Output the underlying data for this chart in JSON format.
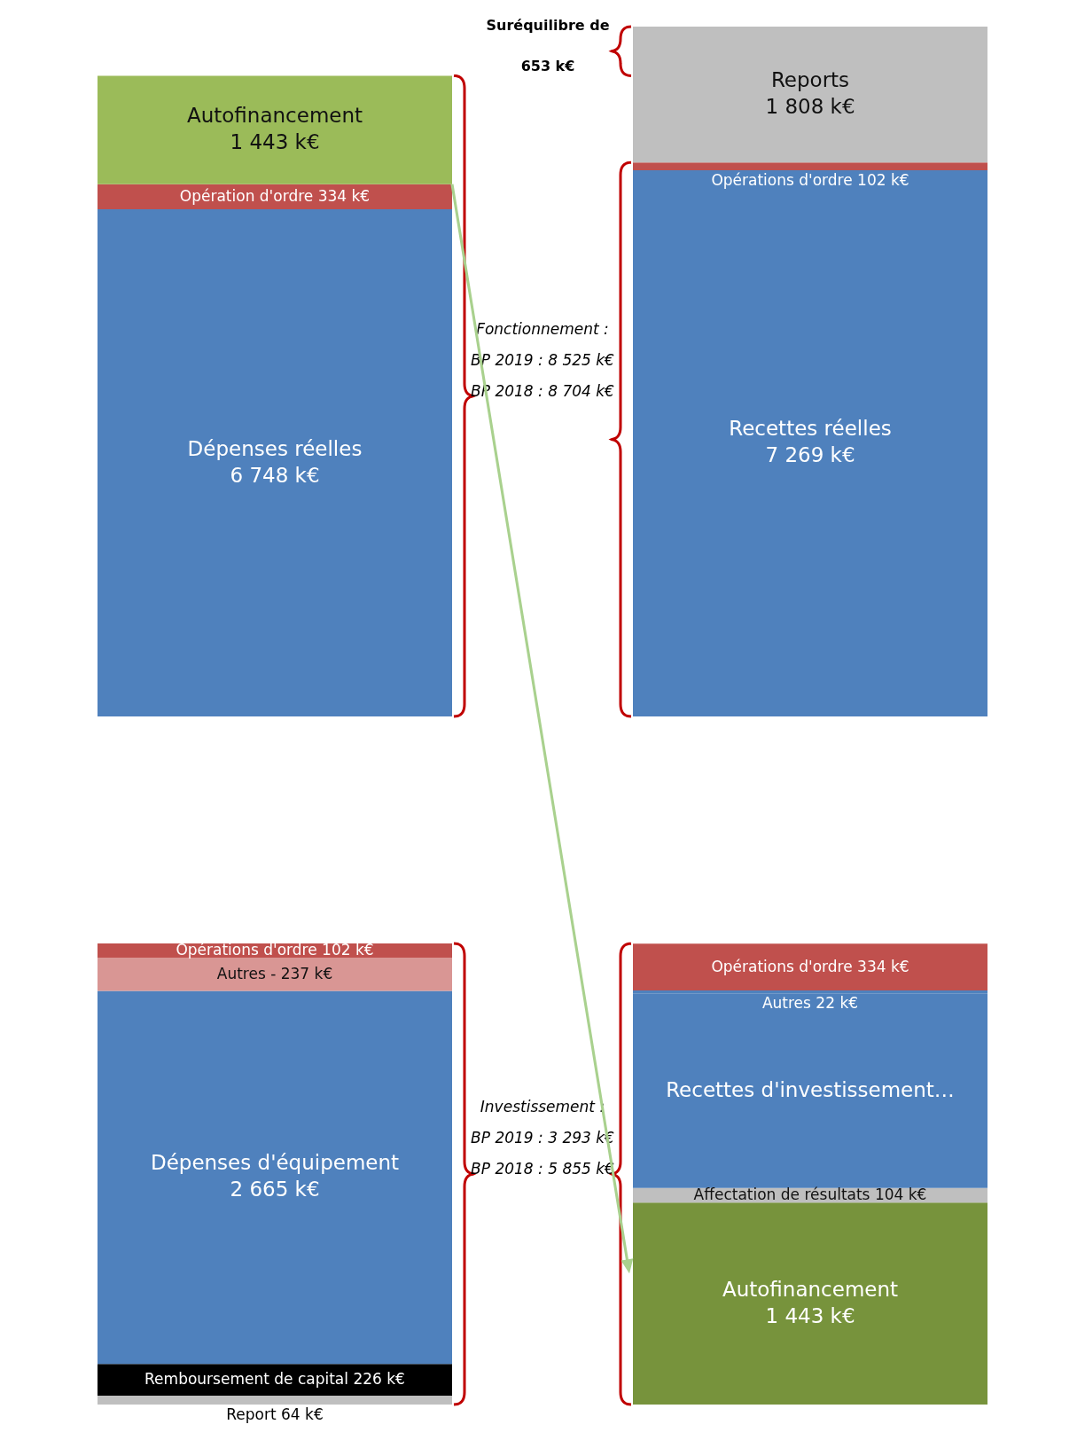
{
  "chart_data": [
    {
      "type": "bar",
      "stacked": true,
      "categories": [
        null,
        null
      ],
      "tick_labels": false,
      "annotations": [
        "Fonctionnement :\nBP 2019 : 8 525 k€\nBP 2018 : 8 704 k€",
        "Suréquilibre de\n653 k€"
      ],
      "series": [
        {
          "name": "Dépenses réelles",
          "color": "#4f81bd",
          "values": [
            6748,
            null
          ],
          "value_labels": [
            "6 748 k€",
            null
          ]
        },
        {
          "name": "Opération d'ordre",
          "color": "#c0504d",
          "values": [
            334,
            null
          ],
          "value_labels": [
            "334 k€",
            null
          ]
        },
        {
          "name": "Autofinancement",
          "color": "#9bbb59",
          "values": [
            1443,
            null
          ],
          "value_labels": [
            "1 443 k€",
            null
          ]
        },
        {
          "name": "Recettes réelles",
          "color": "#4f81bd",
          "values": [
            null,
            7269
          ],
          "value_labels": [
            null,
            "7 269 k€"
          ]
        },
        {
          "name": "Opérations d'ordre",
          "color": "#c0504d",
          "values": [
            null,
            102
          ],
          "value_labels": [
            null,
            "102 k€"
          ]
        },
        {
          "name": "Reports",
          "color": "#bfbfbf",
          "values": [
            null,
            1808
          ],
          "value_labels": [
            null,
            "1 808 k€"
          ]
        }
      ]
    },
    {
      "type": "bar",
      "stacked": true,
      "categories": [
        null,
        null
      ],
      "tick_labels": false,
      "annotations": [
        "Investissement :\nBP 2019 : 3 293 k€\nBP 2018 : 5 855 k€"
      ],
      "series": [
        {
          "name": "Report",
          "color": "#bfbfbf",
          "values": [
            64,
            null
          ],
          "value_labels": [
            "64 k€",
            null
          ]
        },
        {
          "name": "Remboursement de capital",
          "color": "#000000",
          "values": [
            226,
            null
          ],
          "value_labels": [
            "226 k€",
            null
          ]
        },
        {
          "name": "Dépenses d'équipement",
          "color": "#4f81bd",
          "values": [
            2665,
            null
          ],
          "value_labels": [
            "2 665 k€",
            null
          ]
        },
        {
          "name": "Autres -",
          "color": "#d99694",
          "values": [
            237,
            null
          ],
          "value_labels": [
            "237 k€",
            null
          ]
        },
        {
          "name": "Opérations d'ordre",
          "color": "#c0504d",
          "values": [
            102,
            null
          ],
          "value_labels": [
            "102 k€",
            null
          ]
        },
        {
          "name": "Autofinancement",
          "color": "#77933c",
          "values": [
            null,
            1443
          ],
          "value_labels": [
            null,
            "1 443 k€"
          ]
        },
        {
          "name": "Affectation de résultats",
          "color": "#bfbfbf",
          "values": [
            null,
            104
          ],
          "value_labels": [
            null,
            "104 k€"
          ]
        },
        {
          "name": "Recettes d'investissement…",
          "color": "#4f81bd",
          "values": [
            null,
            1390
          ]
        },
        {
          "name": "Autres",
          "color": "#4f81bd",
          "values": [
            null,
            22
          ],
          "value_labels": [
            null,
            "22 k€"
          ]
        },
        {
          "name": "Opérations d'ordre",
          "color": "#c0504d",
          "values": [
            null,
            334
          ],
          "value_labels": [
            null,
            "334 k€"
          ]
        }
      ]
    }
  ]
}
